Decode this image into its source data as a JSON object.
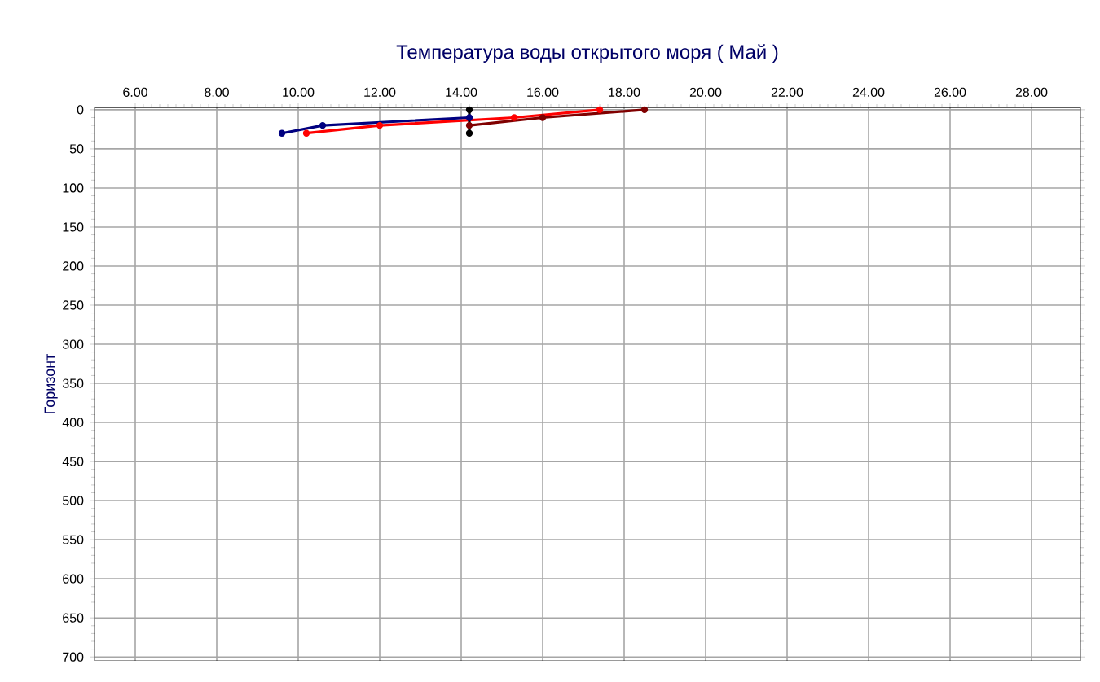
{
  "chart_data": {
    "type": "line",
    "title": "Температура воды открытого моря     ( Май )",
    "ylabel": "Горизонт",
    "xlim": [
      5,
      29.2
    ],
    "ylim": [
      705,
      -3
    ],
    "xticks": [
      {
        "value": 6,
        "label": "6.00"
      },
      {
        "value": 8,
        "label": "8.00"
      },
      {
        "value": 10,
        "label": "10.00"
      },
      {
        "value": 12,
        "label": "12.00"
      },
      {
        "value": 14,
        "label": "14.00"
      },
      {
        "value": 16,
        "label": "16.00"
      },
      {
        "value": 18,
        "label": "18.00"
      },
      {
        "value": 20,
        "label": "20.00"
      },
      {
        "value": 22,
        "label": "22.00"
      },
      {
        "value": 24,
        "label": "24.00"
      },
      {
        "value": 26,
        "label": "26.00"
      },
      {
        "value": 28,
        "label": "28.00"
      }
    ],
    "yticks": [
      0,
      50,
      100,
      150,
      200,
      250,
      300,
      350,
      400,
      450,
      500,
      550,
      600,
      650,
      700
    ],
    "grid": true,
    "marker": "circle",
    "series": [
      {
        "color": "#000080",
        "x": [
          9.6,
          10.6,
          14.2
        ],
        "values": [
          30,
          20,
          10
        ]
      },
      {
        "color": "#ff0000",
        "x": [
          10.2,
          12.0,
          15.3,
          17.4
        ],
        "values": [
          30,
          20,
          10,
          0
        ]
      },
      {
        "color": "#800000",
        "x": [
          14.2,
          16.0,
          18.5
        ],
        "values": [
          20,
          10,
          0
        ]
      },
      {
        "color": "#000000",
        "x": [
          14.2,
          14.2
        ],
        "values": [
          0,
          30
        ]
      }
    ]
  }
}
